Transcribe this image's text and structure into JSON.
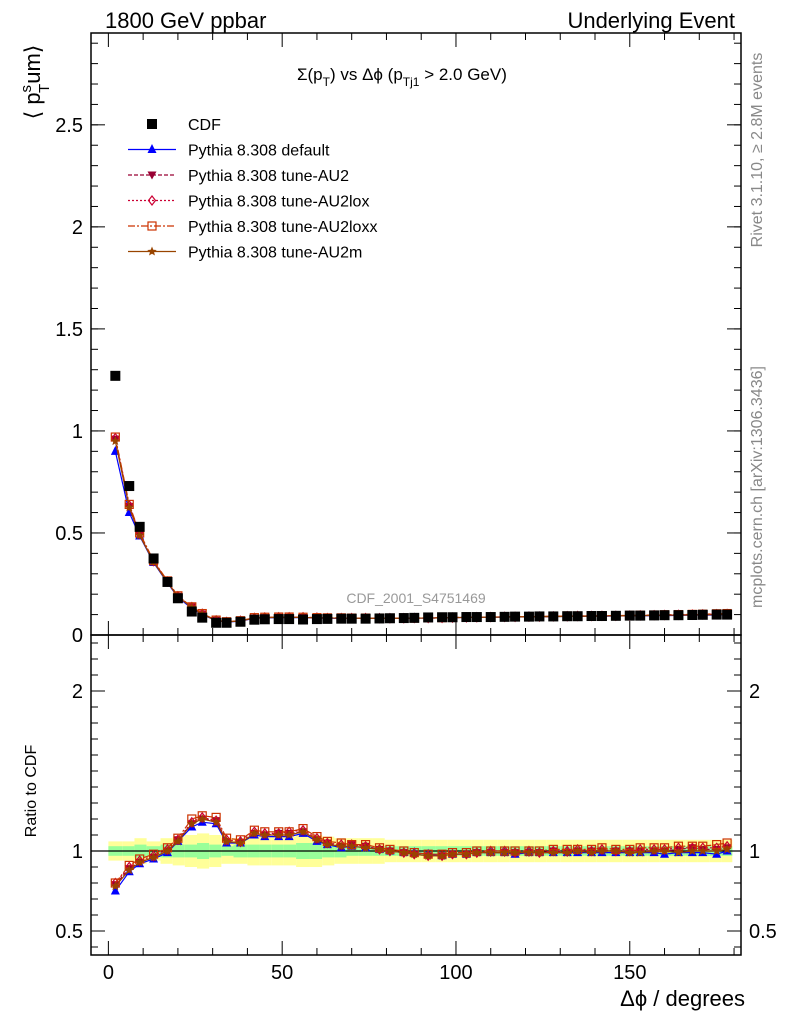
{
  "header": {
    "left": "1800 GeV ppbar",
    "right": "Underlying Event"
  },
  "side_labels": {
    "rivet": "Rivet 3.1.10, ≥ 2.8M events",
    "mcplots": "mcplots.cern.ch [arXiv:1306.3436]"
  },
  "chart_data": [
    {
      "type": "line",
      "title_main": "Σ(p",
      "title_sub1": "T",
      "title_mid": ") vs Δϕ (p",
      "title_sub2": "Tj1",
      "title_end": " > 2.0 GeV)",
      "ylabel": "⟨ p",
      "ylabel_sup": "s",
      "ylabel_sub": "T",
      "ylabel_end": "um⟩",
      "watermark": "CDF_2001_S4751469",
      "ylim": [
        0,
        2.95
      ],
      "xlim": [
        -5,
        182
      ],
      "yticks": [
        0,
        0.5,
        1,
        1.5,
        2,
        2.5
      ],
      "ytick_labels": [
        "0",
        "0.5",
        "1",
        "1.5",
        "2",
        "2.5"
      ],
      "legend_position": "top-left",
      "x": [
        2,
        6,
        9,
        13,
        17,
        20,
        24,
        27,
        31,
        34,
        38,
        42,
        45,
        49,
        52,
        56,
        60,
        63,
        67,
        70,
        74,
        78,
        81,
        85,
        88,
        92,
        96,
        99,
        103,
        106,
        110,
        114,
        117,
        121,
        124,
        128,
        132,
        135,
        139,
        142,
        146,
        150,
        153,
        157,
        160,
        164,
        168,
        171,
        175,
        178
      ],
      "data_series": {
        "name": "CDF",
        "color": "#000000",
        "values": [
          1.27,
          0.73,
          0.53,
          0.375,
          0.26,
          0.18,
          0.115,
          0.085,
          0.06,
          0.06,
          0.065,
          0.075,
          0.077,
          0.078,
          0.078,
          0.076,
          0.078,
          0.079,
          0.08,
          0.08,
          0.08,
          0.081,
          0.082,
          0.083,
          0.084,
          0.086,
          0.087,
          0.087,
          0.088,
          0.088,
          0.088,
          0.089,
          0.09,
          0.09,
          0.091,
          0.091,
          0.092,
          0.092,
          0.093,
          0.093,
          0.094,
          0.095,
          0.095,
          0.096,
          0.097,
          0.097,
          0.098,
          0.099,
          0.1,
          0.1
        ]
      },
      "series": [
        {
          "name": "Pythia 8.308 default",
          "color": "#0000ff",
          "marker": "triangle-up",
          "dash": "",
          "values": [
            0.9,
            0.6,
            0.485,
            0.355,
            0.255,
            0.185,
            0.13,
            0.1,
            0.07,
            0.063,
            0.068,
            0.082,
            0.084,
            0.085,
            0.085,
            0.085,
            0.083,
            0.082,
            0.082,
            0.082,
            0.082,
            0.082,
            0.082,
            0.082,
            0.083,
            0.083,
            0.084,
            0.085,
            0.086,
            0.087,
            0.087,
            0.088,
            0.088,
            0.089,
            0.09,
            0.09,
            0.091,
            0.091,
            0.092,
            0.092,
            0.093,
            0.094,
            0.094,
            0.095,
            0.095,
            0.096,
            0.097,
            0.097,
            0.098,
            0.1
          ]
        },
        {
          "name": "Pythia 8.308 tune-AU2",
          "color": "#990033",
          "marker": "triangle-down",
          "dash": "4,2",
          "values": [
            0.96,
            0.63,
            0.49,
            0.36,
            0.26,
            0.19,
            0.137,
            0.103,
            0.072,
            0.064,
            0.069,
            0.083,
            0.085,
            0.087,
            0.087,
            0.086,
            0.084,
            0.083,
            0.083,
            0.083,
            0.082,
            0.082,
            0.082,
            0.082,
            0.083,
            0.083,
            0.084,
            0.085,
            0.086,
            0.087,
            0.088,
            0.088,
            0.089,
            0.089,
            0.09,
            0.091,
            0.091,
            0.092,
            0.093,
            0.093,
            0.094,
            0.095,
            0.095,
            0.096,
            0.097,
            0.098,
            0.1,
            0.1,
            0.101,
            0.102
          ]
        },
        {
          "name": "Pythia 8.308 tune-AU2lox",
          "color": "#cc0033",
          "marker": "diamond-open",
          "dash": "2,2",
          "values": [
            0.965,
            0.635,
            0.495,
            0.362,
            0.262,
            0.19,
            0.137,
            0.104,
            0.072,
            0.064,
            0.07,
            0.084,
            0.086,
            0.087,
            0.087,
            0.087,
            0.085,
            0.083,
            0.083,
            0.083,
            0.083,
            0.082,
            0.082,
            0.082,
            0.083,
            0.083,
            0.084,
            0.085,
            0.086,
            0.087,
            0.088,
            0.089,
            0.089,
            0.09,
            0.09,
            0.091,
            0.092,
            0.093,
            0.093,
            0.094,
            0.094,
            0.095,
            0.096,
            0.097,
            0.098,
            0.099,
            0.1,
            0.101,
            0.102,
            0.103
          ]
        },
        {
          "name": "Pythia 8.308 tune-AU2loxx",
          "color": "#cc3300",
          "marker": "square-open",
          "dash": "7,2,2,2",
          "values": [
            0.97,
            0.64,
            0.5,
            0.365,
            0.265,
            0.192,
            0.138,
            0.105,
            0.073,
            0.065,
            0.07,
            0.085,
            0.087,
            0.088,
            0.088,
            0.087,
            0.085,
            0.084,
            0.084,
            0.083,
            0.083,
            0.083,
            0.083,
            0.083,
            0.083,
            0.084,
            0.085,
            0.086,
            0.087,
            0.088,
            0.088,
            0.089,
            0.09,
            0.09,
            0.091,
            0.092,
            0.093,
            0.093,
            0.094,
            0.095,
            0.095,
            0.096,
            0.097,
            0.098,
            0.099,
            0.1,
            0.101,
            0.102,
            0.104,
            0.105
          ]
        },
        {
          "name": "Pythia 8.308 tune-AU2m",
          "color": "#994400",
          "marker": "star",
          "dash": "",
          "values": [
            0.95,
            0.625,
            0.488,
            0.358,
            0.258,
            0.188,
            0.135,
            0.102,
            0.071,
            0.064,
            0.069,
            0.083,
            0.085,
            0.086,
            0.086,
            0.086,
            0.084,
            0.083,
            0.083,
            0.082,
            0.082,
            0.082,
            0.082,
            0.082,
            0.083,
            0.083,
            0.084,
            0.085,
            0.086,
            0.087,
            0.087,
            0.088,
            0.089,
            0.089,
            0.09,
            0.09,
            0.091,
            0.092,
            0.092,
            0.093,
            0.094,
            0.094,
            0.095,
            0.096,
            0.097,
            0.097,
            0.098,
            0.099,
            0.1,
            0.101
          ]
        }
      ]
    },
    {
      "type": "line",
      "ylabel": "Ratio to CDF",
      "xlabel": "Δϕ / degrees",
      "ylim": [
        0.35,
        2.35
      ],
      "xlim": [
        -5,
        182
      ],
      "yticks": [
        0.5,
        1,
        2
      ],
      "ytick_labels": [
        "0.5",
        "1",
        "2"
      ],
      "xticks": [
        0,
        50,
        100,
        150
      ],
      "xtick_labels": [
        "0",
        "50",
        "100",
        "150"
      ],
      "band_stat_halfwidth": [
        0.03,
        0.03,
        0.04,
        0.03,
        0.04,
        0.04,
        0.04,
        0.05,
        0.04,
        0.03,
        0.04,
        0.04,
        0.04,
        0.04,
        0.04,
        0.05,
        0.05,
        0.04,
        0.04,
        0.03,
        0.03,
        0.03,
        0.03,
        0.03,
        0.03,
        0.03,
        0.03,
        0.03,
        0.03,
        0.03,
        0.03,
        0.03,
        0.03,
        0.03,
        0.03,
        0.03,
        0.03,
        0.03,
        0.03,
        0.03,
        0.03,
        0.03,
        0.03,
        0.03,
        0.03,
        0.03,
        0.03,
        0.03,
        0.03,
        0.03
      ],
      "band_total_halfwidth": [
        0.06,
        0.06,
        0.08,
        0.06,
        0.08,
        0.09,
        0.1,
        0.11,
        0.1,
        0.08,
        0.08,
        0.09,
        0.09,
        0.09,
        0.09,
        0.1,
        0.1,
        0.09,
        0.08,
        0.08,
        0.08,
        0.08,
        0.07,
        0.07,
        0.07,
        0.07,
        0.07,
        0.07,
        0.07,
        0.07,
        0.07,
        0.07,
        0.07,
        0.07,
        0.07,
        0.07,
        0.07,
        0.07,
        0.07,
        0.07,
        0.07,
        0.07,
        0.07,
        0.07,
        0.07,
        0.07,
        0.07,
        0.07,
        0.07,
        0.07
      ],
      "series": [
        {
          "name": "Pythia 8.308 default",
          "values": [
            0.75,
            0.87,
            0.92,
            0.95,
            0.99,
            1.06,
            1.15,
            1.18,
            1.17,
            1.05,
            1.05,
            1.1,
            1.09,
            1.09,
            1.09,
            1.11,
            1.06,
            1.04,
            1.02,
            1.03,
            1.02,
            1.01,
            1.0,
            0.99,
            0.99,
            0.98,
            0.97,
            0.98,
            0.98,
            0.99,
            0.99,
            0.99,
            0.98,
            0.99,
            0.99,
            0.99,
            0.99,
            0.99,
            0.99,
            0.99,
            0.99,
            0.99,
            0.99,
            0.99,
            0.98,
            0.99,
            0.99,
            0.99,
            0.98,
            1.0
          ]
        },
        {
          "name": "Pythia 8.308 tune-AU2",
          "values": [
            0.79,
            0.89,
            0.93,
            0.96,
            1.0,
            1.07,
            1.17,
            1.2,
            1.19,
            1.06,
            1.05,
            1.11,
            1.1,
            1.11,
            1.11,
            1.12,
            1.07,
            1.05,
            1.03,
            1.04,
            1.03,
            1.01,
            1.0,
            0.99,
            0.98,
            0.97,
            0.97,
            0.98,
            0.98,
            0.99,
            0.99,
            0.99,
            0.99,
            0.99,
            0.99,
            1.0,
            0.99,
            1.0,
            1.0,
            1.0,
            1.0,
            1.0,
            1.0,
            1.0,
            1.0,
            1.01,
            1.02,
            1.01,
            1.01,
            1.02
          ]
        },
        {
          "name": "Pythia 8.308 tune-AU2lox",
          "values": [
            0.8,
            0.9,
            0.94,
            0.97,
            1.01,
            1.07,
            1.18,
            1.21,
            1.19,
            1.07,
            1.06,
            1.12,
            1.11,
            1.11,
            1.12,
            1.13,
            1.08,
            1.05,
            1.04,
            1.04,
            1.03,
            1.01,
            1.0,
            0.99,
            0.98,
            0.97,
            0.97,
            0.98,
            0.98,
            0.99,
            1.0,
            1.0,
            0.99,
            1.0,
            0.99,
            1.0,
            1.0,
            1.01,
            1.0,
            1.01,
            1.0,
            1.0,
            1.01,
            1.01,
            1.01,
            1.02,
            1.02,
            1.02,
            1.02,
            1.03
          ]
        },
        {
          "name": "Pythia 8.308 tune-AU2loxx",
          "values": [
            0.8,
            0.91,
            0.95,
            0.98,
            1.02,
            1.08,
            1.2,
            1.22,
            1.21,
            1.08,
            1.07,
            1.13,
            1.12,
            1.12,
            1.12,
            1.14,
            1.09,
            1.06,
            1.05,
            1.04,
            1.04,
            1.02,
            1.01,
            1.0,
            0.99,
            0.98,
            0.98,
            0.99,
            0.99,
            1.0,
            1.0,
            1.0,
            1.0,
            1.0,
            1.0,
            1.01,
            1.01,
            1.01,
            1.01,
            1.02,
            1.01,
            1.01,
            1.02,
            1.02,
            1.02,
            1.03,
            1.03,
            1.03,
            1.04,
            1.05
          ]
        },
        {
          "name": "Pythia 8.308 tune-AU2m",
          "values": [
            0.78,
            0.88,
            0.93,
            0.96,
            1.0,
            1.06,
            1.17,
            1.2,
            1.18,
            1.06,
            1.05,
            1.11,
            1.1,
            1.1,
            1.1,
            1.12,
            1.07,
            1.04,
            1.03,
            1.03,
            1.02,
            1.01,
            1.0,
            0.99,
            0.98,
            0.97,
            0.97,
            0.98,
            0.98,
            0.99,
            0.99,
            0.99,
            0.99,
            0.99,
            0.99,
            0.99,
            0.99,
            1.0,
            0.99,
            1.0,
            1.0,
            0.99,
            0.99,
            1.0,
            1.0,
            0.99,
            1.0,
            1.0,
            1.0,
            1.01
          ]
        }
      ]
    }
  ]
}
